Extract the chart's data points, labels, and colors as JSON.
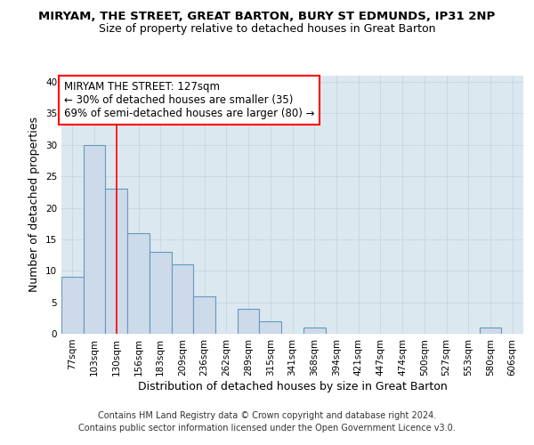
{
  "title": "MIRYAM, THE STREET, GREAT BARTON, BURY ST EDMUNDS, IP31 2NP",
  "subtitle": "Size of property relative to detached houses in Great Barton",
  "xlabel": "Distribution of detached houses by size in Great Barton",
  "ylabel": "Number of detached properties",
  "categories": [
    "77sqm",
    "103sqm",
    "130sqm",
    "156sqm",
    "183sqm",
    "209sqm",
    "236sqm",
    "262sqm",
    "289sqm",
    "315sqm",
    "341sqm",
    "368sqm",
    "394sqm",
    "421sqm",
    "447sqm",
    "474sqm",
    "500sqm",
    "527sqm",
    "553sqm",
    "580sqm",
    "606sqm"
  ],
  "values": [
    9,
    30,
    23,
    16,
    13,
    11,
    6,
    0,
    4,
    2,
    0,
    1,
    0,
    0,
    0,
    0,
    0,
    0,
    0,
    1,
    0
  ],
  "bar_color": "#ccdaea",
  "bar_edge_color": "#6699bb",
  "grid_color": "#c8d4e0",
  "background_color": "#dce8f0",
  "annotation_line1": "MIRYAM THE STREET: 127sqm",
  "annotation_line2": "← 30% of detached houses are smaller (35)",
  "annotation_line3": "69% of semi-detached houses are larger (80) →",
  "annotation_box_facecolor": "white",
  "annotation_box_edgecolor": "red",
  "vline_x": 2,
  "vline_color": "red",
  "ylim": [
    0,
    41
  ],
  "yticks": [
    0,
    5,
    10,
    15,
    20,
    25,
    30,
    35,
    40
  ],
  "footer_line1": "Contains HM Land Registry data © Crown copyright and database right 2024.",
  "footer_line2": "Contains public sector information licensed under the Open Government Licence v3.0.",
  "title_fontsize": 9.5,
  "subtitle_fontsize": 9,
  "xlabel_fontsize": 9,
  "ylabel_fontsize": 9,
  "tick_fontsize": 7.5,
  "annotation_fontsize": 8.5,
  "footer_fontsize": 7
}
